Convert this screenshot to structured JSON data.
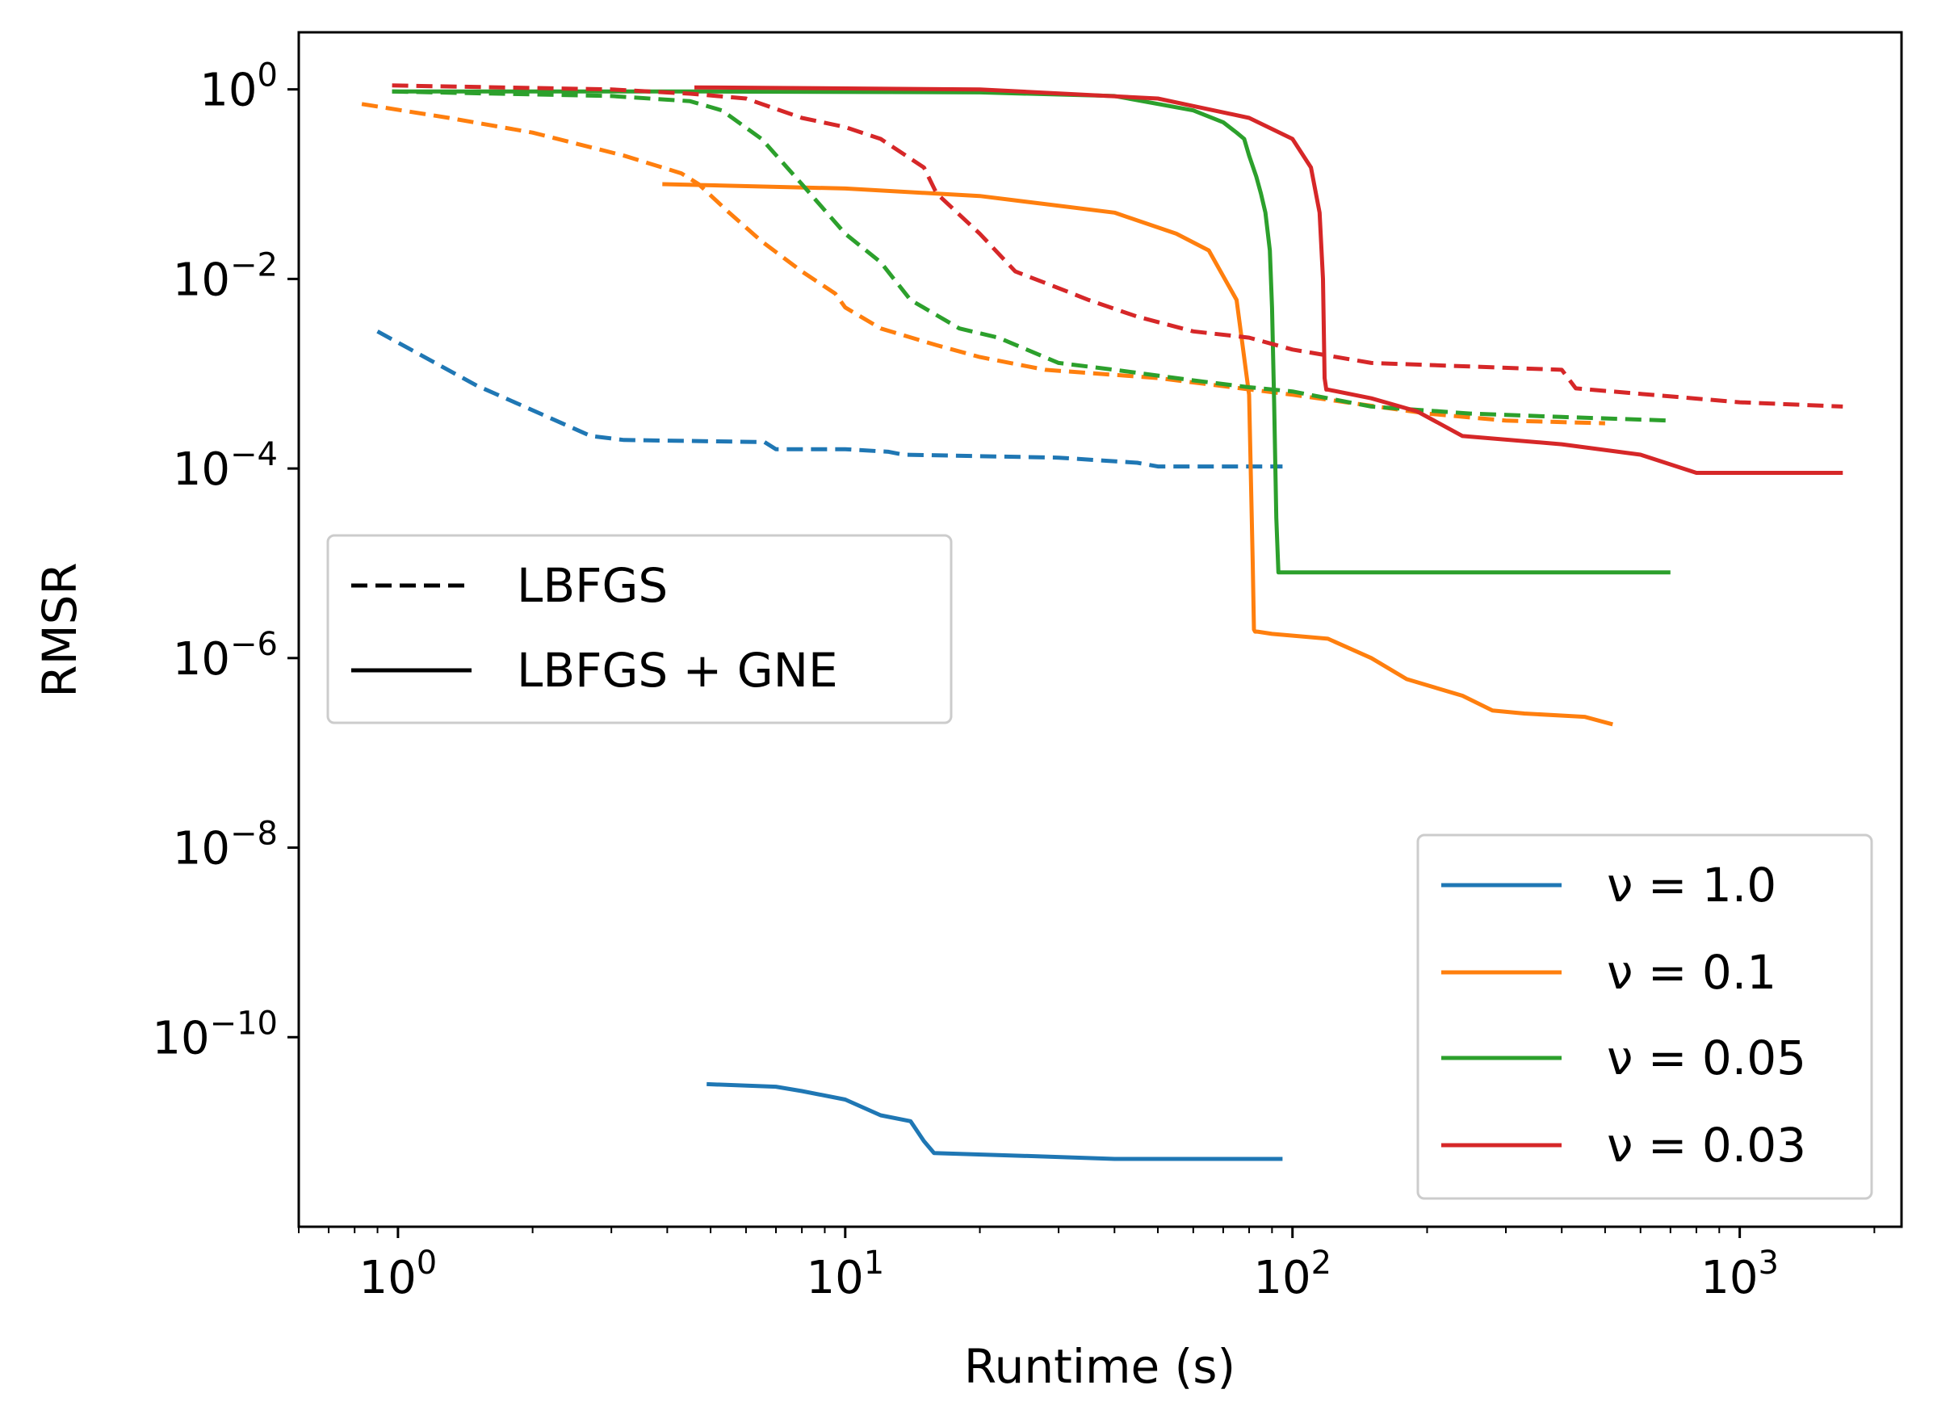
{
  "chart_data": {
    "type": "line",
    "title": "",
    "xlabel": "Runtime (s)",
    "ylabel": "RMSR",
    "xscale": "log",
    "yscale": "log",
    "xlim": [
      0.6,
      2300
    ],
    "ylim": [
      1e-12,
      4
    ],
    "xticks": [
      {
        "value": 1,
        "base": "10",
        "exp": "0"
      },
      {
        "value": 10,
        "base": "10",
        "exp": "1"
      },
      {
        "value": 100,
        "base": "10",
        "exp": "2"
      },
      {
        "value": 1000,
        "base": "10",
        "exp": "3"
      }
    ],
    "yticks": [
      {
        "value": 1,
        "base": "10",
        "exp": "0"
      },
      {
        "value": 0.01,
        "base": "10",
        "exp": "−2"
      },
      {
        "value": 0.0001,
        "base": "10",
        "exp": "−4"
      },
      {
        "value": 1e-06,
        "base": "10",
        "exp": "−6"
      },
      {
        "value": 1e-08,
        "base": "10",
        "exp": "−8"
      },
      {
        "value": 1e-10,
        "base": "10",
        "exp": "−10"
      }
    ],
    "colors": {
      "nu_1.0": "#1f77b4",
      "nu_0.1": "#ff7f0e",
      "nu_0.05": "#2ca02c",
      "nu_0.03": "#d62728"
    },
    "legend_style": {
      "position": "center-left",
      "entries": [
        {
          "label": "LBFGS",
          "dash": "dashed"
        },
        {
          "label": "LBFGS + GNE",
          "dash": "solid"
        }
      ]
    },
    "legend_nu": {
      "position": "lower-right",
      "entries": [
        {
          "label": "ν = 1.0",
          "color": "#1f77b4"
        },
        {
          "label": "ν = 0.1",
          "color": "#ff7f0e"
        },
        {
          "label": "ν = 0.05",
          "color": "#2ca02c"
        },
        {
          "label": "ν = 0.03",
          "color": "#d62728"
        }
      ]
    },
    "series": [
      {
        "name": "ν = 1.0 LBFGS",
        "color": "#1f77b4",
        "dash": "dashed",
        "x": [
          0.9,
          1.5,
          2.7,
          3.2,
          6.6,
          7.0,
          10,
          12.5,
          13.5,
          30,
          45,
          50,
          70,
          95
        ],
        "y": [
          0.0028,
          0.00075,
          0.00022,
          0.0002,
          0.00019,
          0.00016,
          0.00016,
          0.00015,
          0.00014,
          0.00013,
          0.000115,
          0.000105,
          0.000105,
          0.000105
        ]
      },
      {
        "name": "ν = 1.0 LBFGS + GNE",
        "color": "#1f77b4",
        "dash": "solid",
        "x": [
          4.9,
          7,
          8,
          10,
          12,
          14,
          15,
          15.8,
          25,
          40,
          95
        ],
        "y": [
          3.2e-11,
          3e-11,
          2.7e-11,
          2.2e-11,
          1.5e-11,
          1.3e-11,
          8e-12,
          6e-12,
          5.6e-12,
          5.2e-12,
          5.2e-12
        ]
      },
      {
        "name": "ν = 0.1 LBFGS",
        "color": "#ff7f0e",
        "dash": "dashed",
        "x": [
          0.83,
          1.3,
          2,
          3.2,
          4.3,
          4.7,
          5.5,
          6.5,
          8,
          9.5,
          10,
          12,
          16,
          20,
          28,
          50,
          100,
          200,
          300,
          500
        ],
        "y": [
          0.7,
          0.5,
          0.35,
          0.2,
          0.13,
          0.1,
          0.05,
          0.025,
          0.012,
          0.007,
          0.005,
          0.003,
          0.002,
          0.0015,
          0.0011,
          0.0009,
          0.0006,
          0.00038,
          0.00032,
          0.0003
        ]
      },
      {
        "name": "ν = 0.1 LBFGS + GNE",
        "color": "#ff7f0e",
        "dash": "solid",
        "x": [
          3.9,
          10,
          20,
          40,
          55,
          65,
          75,
          80,
          81.5,
          82,
          82.5,
          83.5,
          90,
          120,
          150,
          180,
          240,
          280,
          330,
          450,
          520
        ],
        "y": [
          0.1,
          0.09,
          0.075,
          0.05,
          0.03,
          0.02,
          0.006,
          0.0006,
          1e-05,
          2e-06,
          1.9e-06,
          1.9e-06,
          1.8e-06,
          1.6e-06,
          1e-06,
          6e-07,
          4e-07,
          2.8e-07,
          2.6e-07,
          2.4e-07,
          2e-07
        ]
      },
      {
        "name": "ν = 0.05 LBFGS",
        "color": "#2ca02c",
        "dash": "dashed",
        "x": [
          0.97,
          3,
          4.5,
          5.3,
          6.5,
          8,
          10,
          12,
          14,
          18,
          22,
          30,
          40,
          60,
          80,
          100,
          150,
          250,
          400,
          700
        ],
        "y": [
          0.95,
          0.85,
          0.75,
          0.6,
          0.3,
          0.1,
          0.03,
          0.015,
          0.006,
          0.003,
          0.0024,
          0.0013,
          0.0011,
          0.00085,
          0.00072,
          0.00065,
          0.00045,
          0.00038,
          0.00035,
          0.00032
        ]
      },
      {
        "name": "ν = 0.05 LBFGS + GNE",
        "color": "#2ca02c",
        "dash": "solid",
        "x": [
          0.97,
          5,
          20,
          40,
          60,
          70,
          75,
          78,
          80,
          83,
          85,
          87,
          89,
          90,
          91,
          92,
          93,
          95,
          200,
          700
        ],
        "y": [
          0.95,
          0.95,
          0.93,
          0.85,
          0.6,
          0.45,
          0.35,
          0.3,
          0.2,
          0.12,
          0.08,
          0.05,
          0.02,
          0.005,
          0.0005,
          3e-05,
          8e-06,
          8e-06,
          8e-06,
          8e-06
        ]
      },
      {
        "name": "ν = 0.03 LBFGS",
        "color": "#d62728",
        "dash": "dashed",
        "x": [
          0.97,
          3,
          4.5,
          6,
          8,
          10,
          12,
          15,
          16,
          20,
          24,
          30,
          35,
          45,
          60,
          80,
          100,
          150,
          400,
          430,
          1000,
          1700
        ],
        "y": [
          1.1,
          1.0,
          0.9,
          0.8,
          0.5,
          0.4,
          0.3,
          0.15,
          0.08,
          0.03,
          0.012,
          0.008,
          0.006,
          0.004,
          0.0028,
          0.0024,
          0.0018,
          0.0013,
          0.0011,
          0.0007,
          0.0005,
          0.00045
        ]
      },
      {
        "name": "ν = 0.03 LBFGS + GNE",
        "color": "#d62728",
        "dash": "solid",
        "x": [
          4.6,
          20,
          50,
          80,
          100,
          110,
          115,
          117,
          118,
          119,
          120,
          150,
          190,
          240,
          400,
          600,
          800,
          1700
        ],
        "y": [
          1.05,
          1.0,
          0.8,
          0.5,
          0.3,
          0.15,
          0.05,
          0.01,
          0.0009,
          0.00068,
          0.00068,
          0.00055,
          0.0004,
          0.00022,
          0.00018,
          0.00014,
          9e-05,
          9e-05
        ]
      }
    ]
  }
}
